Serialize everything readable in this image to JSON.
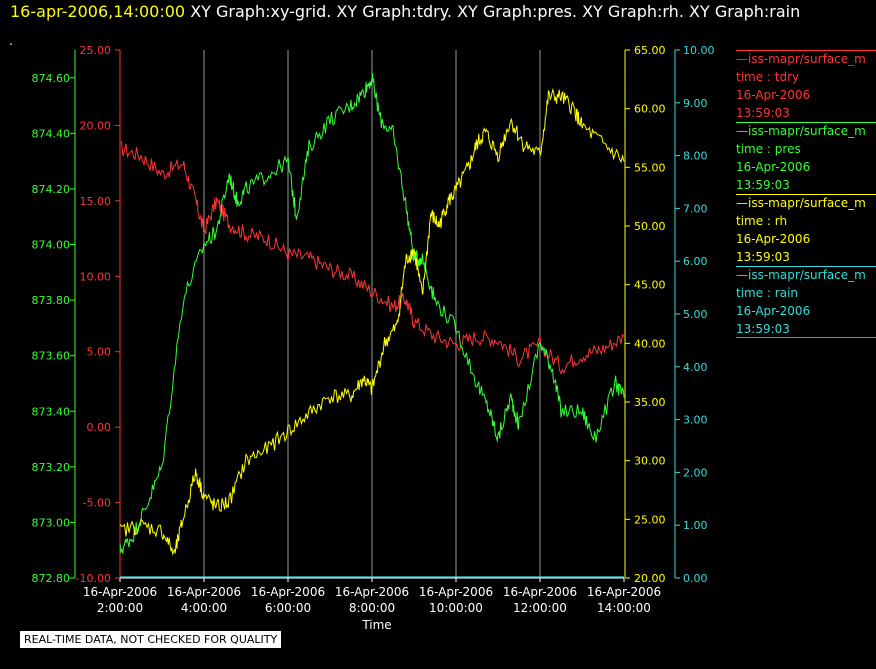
{
  "header": {
    "timestamp": "16-apr-2006,14:00:00",
    "graphs": "XY Graph:xy-grid.  XY Graph:tdry.  XY Graph:pres.  XY Graph:rh.  XY Graph:rain",
    "dot": "."
  },
  "note": "REAL-TIME DATA, NOT CHECKED FOR QUALITY",
  "legend": [
    {
      "source": "iss-mapr/surface_m",
      "var": "time : tdry",
      "date": "16-Apr-2006",
      "time": "13:59:03",
      "color": "#ff3333"
    },
    {
      "source": "iss-mapr/surface_m",
      "var": "time : pres",
      "date": "16-Apr-2006",
      "time": "13:59:03",
      "color": "#33ff33"
    },
    {
      "source": "iss-mapr/surface_m",
      "var": "time : rh",
      "date": "16-Apr-2006",
      "time": "13:59:03",
      "color": "#ffff00"
    },
    {
      "source": "iss-mapr/surface_m",
      "var": "time : rain",
      "date": "16-Apr-2006",
      "time": "13:59:03",
      "color": "#33dddd"
    }
  ],
  "chart_data": {
    "type": "line",
    "title": "",
    "xlabel": "Time",
    "x_ticks": [
      {
        "date": "16-Apr-2006",
        "time": "2:00:00",
        "hour": 2
      },
      {
        "date": "16-Apr-2006",
        "time": "4:00:00",
        "hour": 4
      },
      {
        "date": "16-Apr-2006",
        "time": "6:00:00",
        "hour": 6
      },
      {
        "date": "16-Apr-2006",
        "time": "8:00:00",
        "hour": 8
      },
      {
        "date": "16-Apr-2006",
        "time": "10:00:00",
        "hour": 10
      },
      {
        "date": "16-Apr-2006",
        "time": "12:00:00",
        "hour": 12
      },
      {
        "date": "16-Apr-2006",
        "time": "14:00:00",
        "hour": 14
      }
    ],
    "xlim_hours": [
      2,
      14
    ],
    "grid": "vertical",
    "axes": {
      "tdry": {
        "color": "#ff3333",
        "ylim": [
          -10,
          25
        ],
        "ticks": [
          "25.00",
          "20.00",
          "15.00",
          "10.00",
          "5.00",
          "0.00",
          "-5.00",
          "-10.00"
        ]
      },
      "pres": {
        "color": "#33ff33",
        "ylim": [
          872.8,
          874.7
        ],
        "ticks": [
          "874.60",
          "874.40",
          "874.20",
          "874.00",
          "873.80",
          "873.60",
          "873.40",
          "873.20",
          "873.00",
          "872.80"
        ]
      },
      "rh": {
        "color": "#ffff00",
        "ylim": [
          20,
          65
        ],
        "ticks": [
          "65.00",
          "60.00",
          "55.00",
          "50.00",
          "45.00",
          "40.00",
          "35.00",
          "30.00",
          "25.00",
          "20.00"
        ]
      },
      "rain": {
        "color": "#33dddd",
        "ylim": [
          0,
          10
        ],
        "ticks": [
          "10.00",
          "9.00",
          "8.00",
          "7.00",
          "6.00",
          "5.00",
          "4.00",
          "3.00",
          "2.00",
          "1.00",
          "0.00"
        ]
      }
    },
    "series": [
      {
        "name": "tdry",
        "axis": "tdry",
        "x": [
          2.0,
          2.5,
          3.0,
          3.5,
          3.8,
          4.0,
          4.3,
          4.6,
          5.0,
          5.5,
          6.0,
          6.5,
          7.0,
          7.5,
          8.0,
          8.5,
          8.8,
          9.0,
          9.5,
          10.0,
          10.5,
          11.0,
          11.5,
          12.0,
          12.5,
          13.0,
          13.5,
          14.0
        ],
        "y": [
          18.5,
          18.0,
          16.8,
          17.5,
          15.0,
          13.0,
          15.0,
          13.5,
          12.8,
          12.5,
          11.5,
          11.2,
          10.5,
          10.0,
          9.0,
          8.0,
          8.5,
          7.0,
          6.0,
          5.5,
          6.0,
          5.8,
          4.5,
          5.5,
          4.0,
          4.8,
          5.2,
          6.0
        ]
      },
      {
        "name": "pres",
        "axis": "pres",
        "x": [
          2.0,
          2.3,
          2.6,
          3.0,
          3.5,
          4.0,
          4.3,
          4.6,
          4.8,
          5.0,
          5.5,
          6.0,
          6.2,
          6.5,
          7.0,
          7.5,
          7.8,
          8.0,
          8.2,
          8.5,
          8.8,
          9.0,
          9.2,
          9.5,
          10.0,
          10.5,
          10.8,
          11.0,
          11.3,
          11.5,
          12.0,
          12.3,
          12.5,
          13.0,
          13.3,
          13.8,
          14.0
        ],
        "y": [
          872.9,
          872.95,
          873.05,
          873.2,
          873.8,
          874.0,
          874.05,
          874.25,
          874.15,
          874.2,
          874.25,
          874.3,
          874.1,
          874.35,
          874.45,
          874.5,
          874.55,
          874.6,
          874.45,
          874.4,
          874.15,
          873.95,
          873.95,
          873.8,
          873.7,
          873.5,
          873.4,
          873.3,
          873.45,
          873.35,
          873.65,
          873.55,
          873.4,
          873.4,
          873.3,
          873.5,
          873.45
        ]
      },
      {
        "name": "rh",
        "axis": "rh",
        "x": [
          2.0,
          2.5,
          3.0,
          3.3,
          3.5,
          3.8,
          4.0,
          4.3,
          4.6,
          5.0,
          5.5,
          6.0,
          6.5,
          7.0,
          7.5,
          7.8,
          8.0,
          8.3,
          8.6,
          8.8,
          9.0,
          9.2,
          9.4,
          9.6,
          9.8,
          10.0,
          10.3,
          10.5,
          10.7,
          11.0,
          11.3,
          11.6,
          12.0,
          12.2,
          12.5,
          12.8,
          13.0,
          13.5,
          14.0
        ],
        "y": [
          24.0,
          24.5,
          24.0,
          22.0,
          25.0,
          29.0,
          27.0,
          26.0,
          26.5,
          30.0,
          31.0,
          32.5,
          34.0,
          35.5,
          35.5,
          37.0,
          36.0,
          40.0,
          41.5,
          47.0,
          48.0,
          44.0,
          51.0,
          50.0,
          52.0,
          53.0,
          55.0,
          57.0,
          58.0,
          56.0,
          59.0,
          57.0,
          56.0,
          61.0,
          61.0,
          60.0,
          58.5,
          57.0,
          55.5
        ]
      },
      {
        "name": "rain",
        "axis": "rain",
        "x": [
          2.0,
          14.0
        ],
        "y": [
          0.02,
          0.02
        ]
      }
    ]
  }
}
